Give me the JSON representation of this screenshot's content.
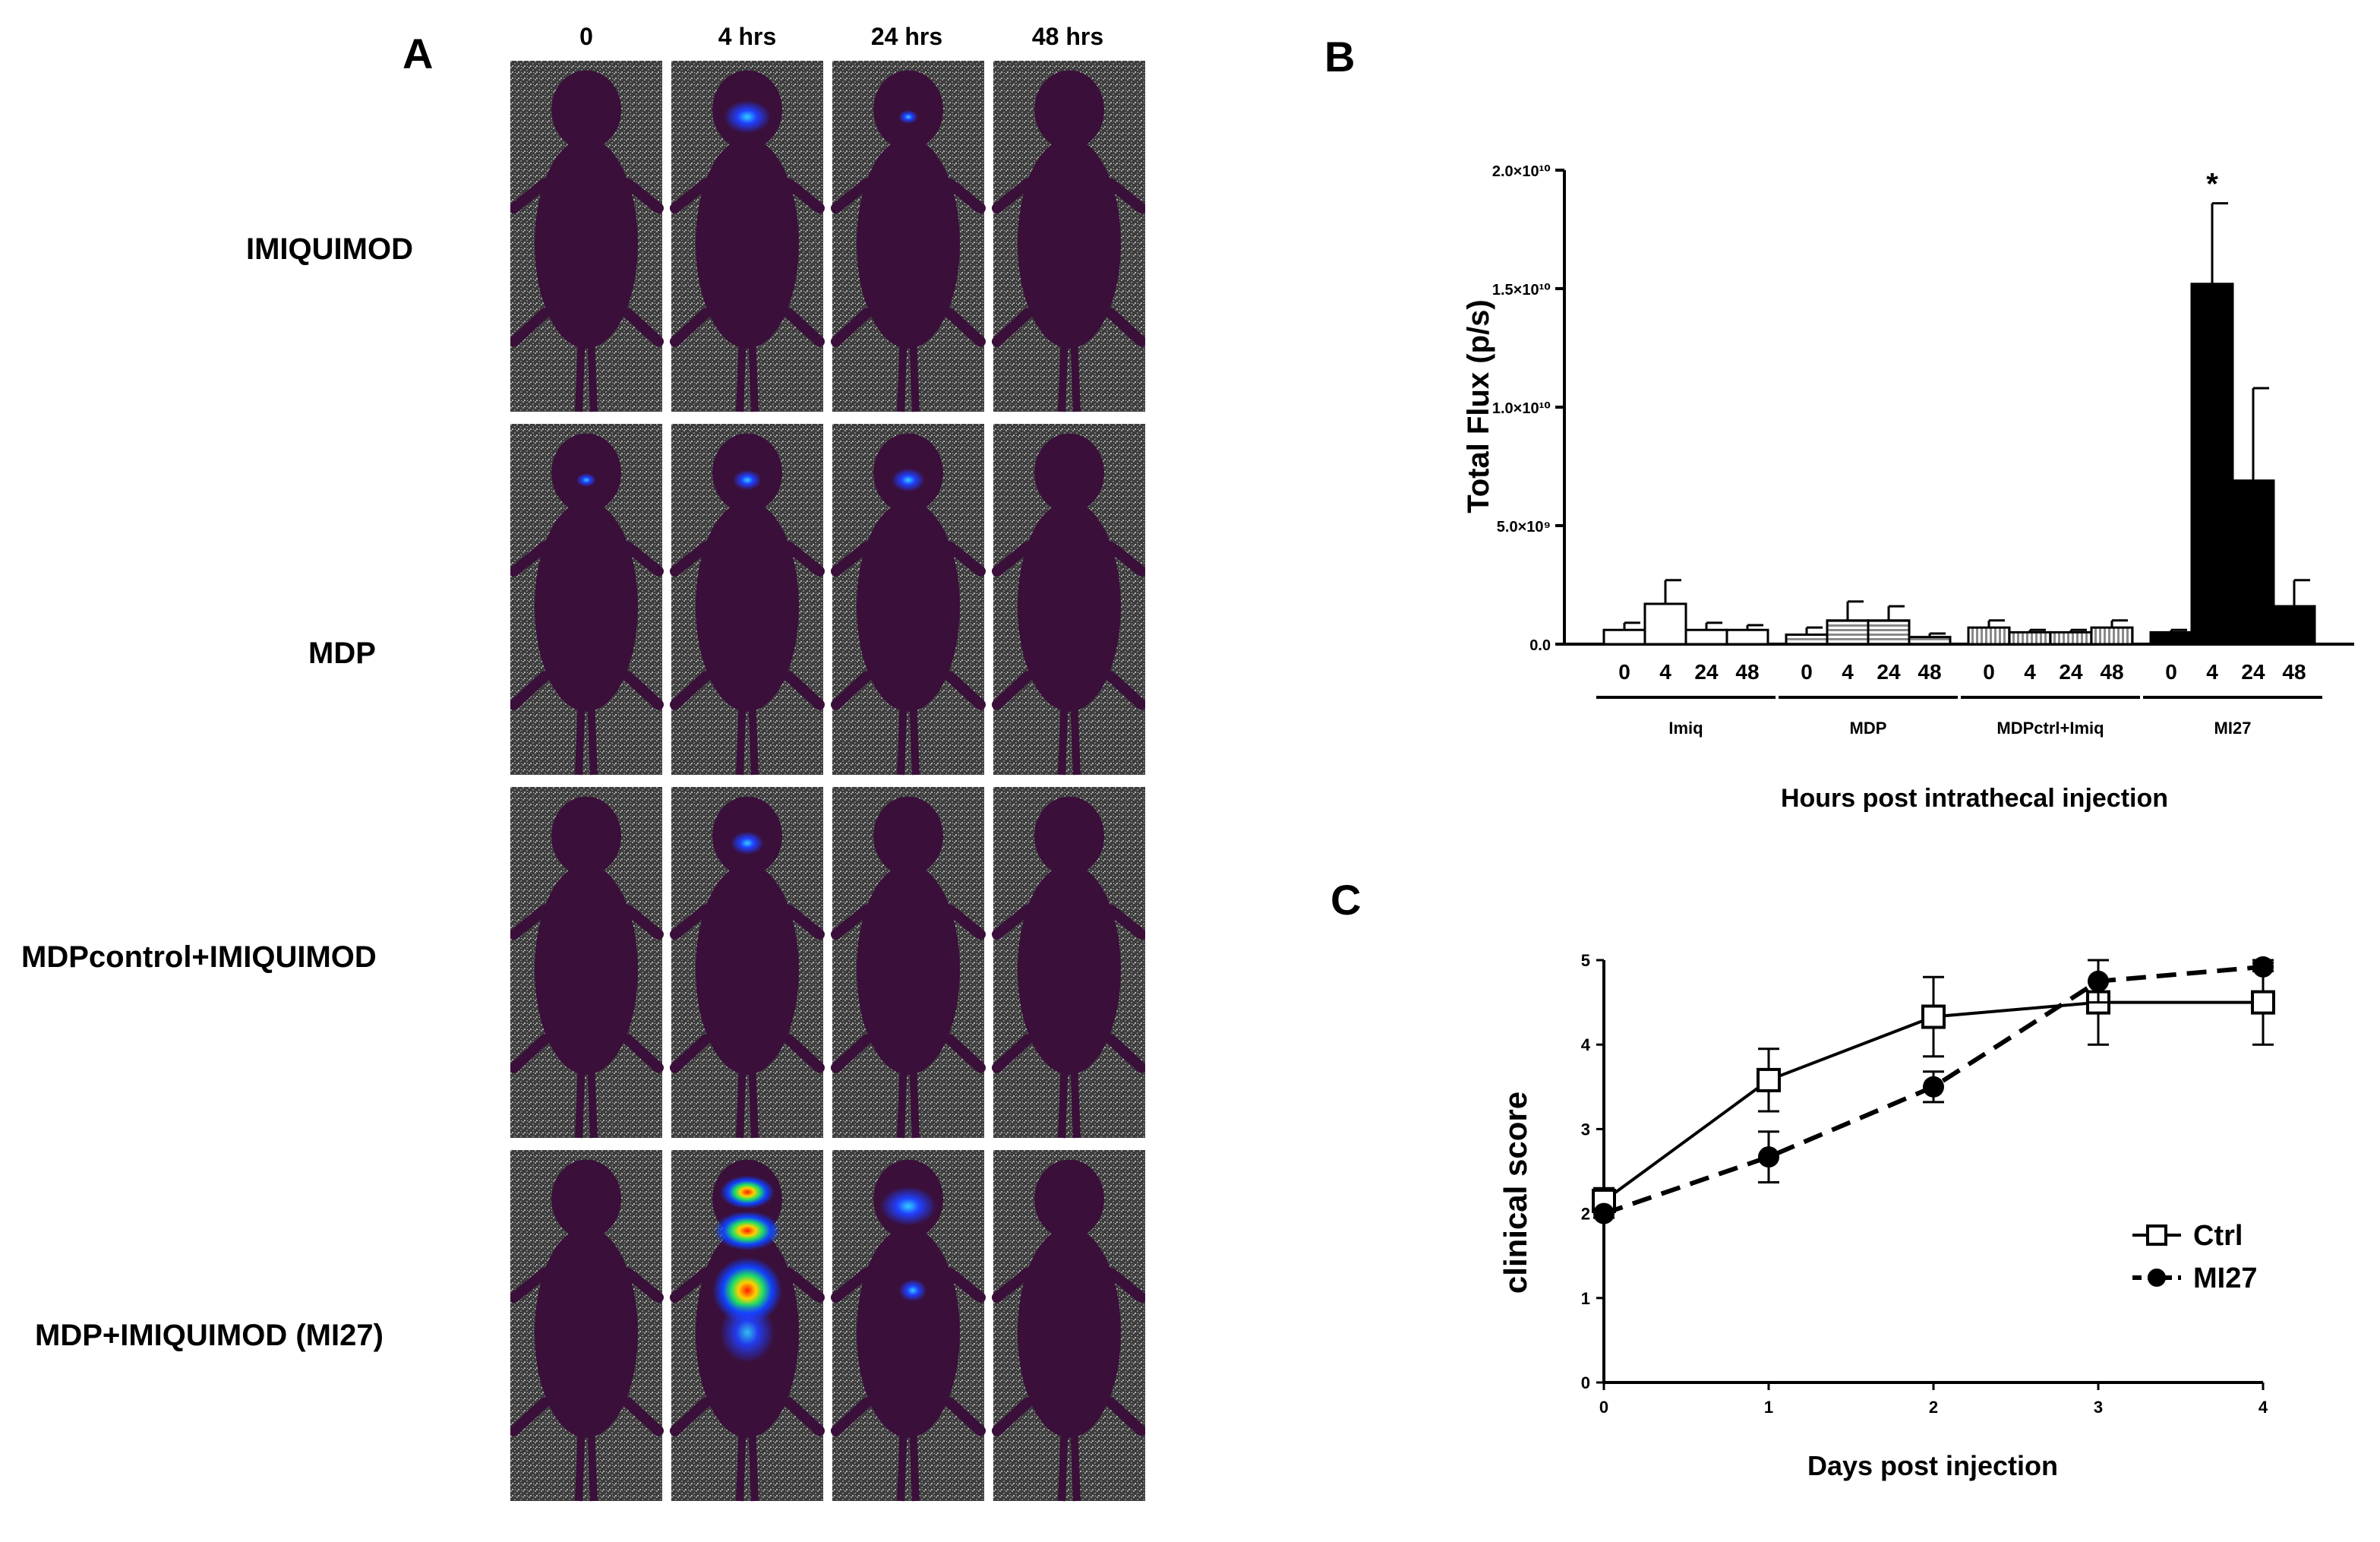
{
  "panel_a": {
    "letter": "A",
    "columns": [
      "0",
      "4 hrs",
      "24 hrs",
      "48 hrs"
    ],
    "rows": [
      "IMIQUIMOD",
      "MDP",
      "MDPcontrol+IMIQUIMOD",
      "MDP+IMIQUIMOD (MI27)"
    ],
    "signal": [
      [
        0,
        0.35,
        0.05,
        0
      ],
      [
        0.05,
        0.15,
        0.2,
        0
      ],
      [
        0,
        0.2,
        0,
        0
      ],
      [
        0,
        1.0,
        0.45,
        0
      ]
    ],
    "colors": {
      "body": "#3a0f3a",
      "background": "#4a4a4a",
      "signal_low": "#2030ff",
      "signal_high": "#ff1a00"
    }
  },
  "panel_b": {
    "letter": "B"
  },
  "panel_c": {
    "letter": "C"
  },
  "chart_data": [
    {
      "type": "bar",
      "ylabel": "Total Flux (p/s)",
      "xlabel": "Hours post intrathecal injection",
      "ylim": [
        0,
        20000000000
      ],
      "yticks": [
        {
          "value": 0,
          "label": "0.0"
        },
        {
          "value": 5000000000,
          "label": "5.0×10⁹"
        },
        {
          "value": 10000000000,
          "label": "1.0×10¹⁰"
        },
        {
          "value": 15000000000,
          "label": "1.5×10¹⁰"
        },
        {
          "value": 20000000000,
          "label": "2.0×10¹⁰"
        }
      ],
      "categories": [
        "0",
        "4",
        "24",
        "48"
      ],
      "groups": [
        {
          "name": "Imiq",
          "fill": "open",
          "values": [
            600000000,
            1700000000,
            600000000,
            600000000
          ],
          "errors": [
            300000000,
            1000000000,
            300000000,
            200000000
          ]
        },
        {
          "name": "MDP",
          "fill": "horizontal",
          "values": [
            400000000,
            1000000000,
            1000000000,
            300000000
          ],
          "errors": [
            300000000,
            800000000,
            600000000,
            150000000
          ]
        },
        {
          "name": "MDPctrl+Imiq",
          "fill": "vertical",
          "values": [
            700000000,
            500000000,
            500000000,
            700000000
          ],
          "errors": [
            300000000,
            100000000,
            100000000,
            300000000
          ]
        },
        {
          "name": "MI27",
          "fill": "solid",
          "values": [
            500000000,
            15200000000,
            6900000000,
            1600000000
          ],
          "errors": [
            100000000,
            3400000000,
            3900000000,
            1100000000
          ]
        }
      ],
      "annotations": [
        {
          "group": "MI27",
          "category": "4",
          "text": "*"
        }
      ]
    },
    {
      "type": "line",
      "xlabel": "Days post injection",
      "ylabel": "clinical score",
      "xlim": [
        0,
        4
      ],
      "ylim": [
        0,
        5
      ],
      "x": [
        0,
        1,
        2,
        3,
        4
      ],
      "xticks": [
        "0",
        "1",
        "2",
        "3",
        "4"
      ],
      "yticks": [
        "0",
        "1",
        "2",
        "3",
        "4",
        "5"
      ],
      "legend_position": "bottom-right",
      "series": [
        {
          "name": "Ctrl",
          "marker": "open-square",
          "line": "solid",
          "values": [
            2.15,
            3.58,
            4.33,
            4.5,
            4.5
          ],
          "errors": [
            0.15,
            0.37,
            0.47,
            0.5,
            0.5
          ]
        },
        {
          "name": "MI27",
          "marker": "filled-circle",
          "line": "dashed",
          "values": [
            2.0,
            2.67,
            3.5,
            4.75,
            4.92
          ],
          "errors": [
            0.05,
            0.3,
            0.18,
            0.25,
            0.05
          ]
        }
      ]
    }
  ]
}
